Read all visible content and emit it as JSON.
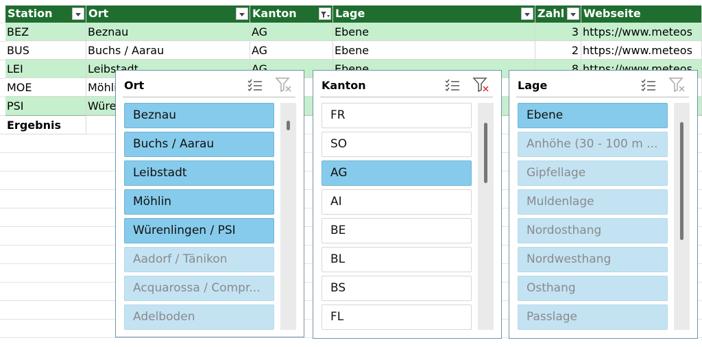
{
  "table": {
    "headers": [
      "Station",
      "Ort",
      "Kanton",
      "Lage",
      "Zahl",
      "Webseite"
    ],
    "filtered_column": 2,
    "rows": [
      [
        "BEZ",
        "Beznau",
        "AG",
        "Ebene",
        3,
        "https://www.meteos"
      ],
      [
        "BUS",
        "Buchs / Aarau",
        "AG",
        "Ebene",
        2,
        "https://www.meteos"
      ],
      [
        "LEI",
        "Leibstadt",
        "AG",
        "Ebene",
        8,
        "https://www.meteos"
      ],
      [
        "MOE",
        "Möhlin",
        null,
        null,
        null,
        null
      ],
      [
        "PSI",
        "Würenlingen / PSI",
        null,
        null,
        null,
        null
      ]
    ],
    "total_label": "Ergebnis"
  },
  "slicers": [
    {
      "title": "Ort",
      "filter_active": false,
      "items": [
        {
          "label": "Beznau",
          "state": "selected"
        },
        {
          "label": "Buchs / Aarau",
          "state": "selected"
        },
        {
          "label": "Leibstadt",
          "state": "selected"
        },
        {
          "label": "Möhlin",
          "state": "selected"
        },
        {
          "label": "Würenlingen / PSI",
          "state": "selected"
        },
        {
          "label": "Aadorf / Tänikon",
          "state": "nodata"
        },
        {
          "label": "Acquarossa / Compr...",
          "state": "nodata"
        },
        {
          "label": "Adelboden",
          "state": "nodata"
        }
      ]
    },
    {
      "title": "Kanton",
      "filter_active": true,
      "items": [
        {
          "label": "FR",
          "state": "available"
        },
        {
          "label": "SO",
          "state": "available"
        },
        {
          "label": "AG",
          "state": "selected"
        },
        {
          "label": "AI",
          "state": "available"
        },
        {
          "label": "BE",
          "state": "available"
        },
        {
          "label": "BL",
          "state": "available"
        },
        {
          "label": "BS",
          "state": "available"
        },
        {
          "label": "FL",
          "state": "available"
        }
      ]
    },
    {
      "title": "Lage",
      "filter_active": false,
      "items": [
        {
          "label": "Ebene",
          "state": "selected"
        },
        {
          "label": "Anhöhe (30 - 100 m ...",
          "state": "nodata"
        },
        {
          "label": "Gipfellage",
          "state": "nodata"
        },
        {
          "label": "Muldenlage",
          "state": "nodata"
        },
        {
          "label": "Nordosthang",
          "state": "nodata"
        },
        {
          "label": "Nordwesthang",
          "state": "nodata"
        },
        {
          "label": "Osthang",
          "state": "nodata"
        },
        {
          "label": "Passlage",
          "state": "nodata"
        }
      ]
    }
  ]
}
